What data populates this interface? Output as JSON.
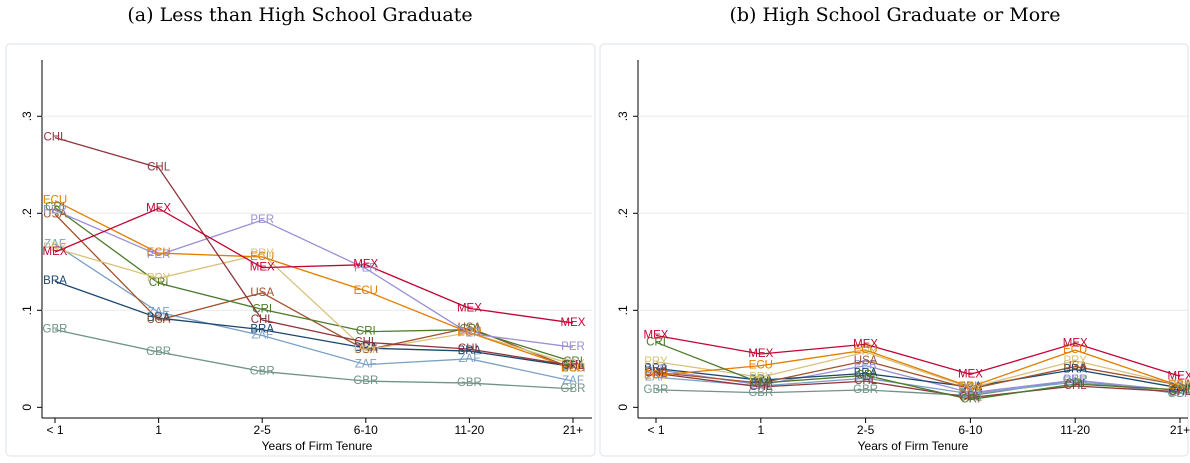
{
  "chart_data": [
    {
      "type": "line",
      "title": "(a) Less than High School Graduate",
      "x_label": "Years of Firm Tenure",
      "categories": [
        "< 1",
        "1",
        "2-5",
        "6-10",
        "11-20",
        "21+"
      ],
      "ylim": [
        -0.011,
        0.358
      ],
      "yticks": [
        0,
        {
          "value": 0.1,
          "label": ".1"
        },
        {
          "value": 0.2,
          "label": ".2"
        },
        {
          "value": 0.3,
          "label": ".3"
        }
      ],
      "grid": true,
      "series": [
        {
          "name": "GBR",
          "color": "#6f9485",
          "values": [
            0.08,
            0.057,
            0.037,
            0.027,
            0.025,
            0.019
          ]
        },
        {
          "name": "ZAF",
          "color": "#7ba0c7",
          "values": [
            0.168,
            0.098,
            0.074,
            0.044,
            0.05,
            0.027
          ]
        },
        {
          "name": "BRA",
          "color": "#1a476f",
          "values": [
            0.13,
            0.092,
            0.08,
            0.061,
            0.058,
            0.042
          ]
        },
        {
          "name": "USA",
          "color": "#a0522d",
          "values": [
            0.199,
            0.09,
            0.118,
            0.059,
            0.082,
            0.04
          ]
        },
        {
          "name": "CRI",
          "color": "#4b7a2a",
          "values": [
            0.206,
            0.128,
            0.101,
            0.078,
            0.08,
            0.047
          ]
        },
        {
          "name": "PRY",
          "color": "#d8c27a",
          "values": [
            0.164,
            0.133,
            0.158,
            0.059,
            0.077,
            0.044
          ]
        },
        {
          "name": "PER",
          "color": "#9a8fd6",
          "values": [
            0.203,
            0.157,
            0.193,
            0.143,
            0.076,
            0.062
          ]
        },
        {
          "name": "ECU",
          "color": "#e37e00",
          "values": [
            0.213,
            0.159,
            0.155,
            0.12,
            0.077,
            0.04
          ]
        },
        {
          "name": "CHL",
          "color": "#90353b",
          "values": [
            0.278,
            0.247,
            0.09,
            0.067,
            0.06,
            0.043
          ]
        },
        {
          "name": "MEX",
          "color": "#c10534",
          "values": [
            0.16,
            0.205,
            0.144,
            0.147,
            0.102,
            0.087
          ]
        }
      ]
    },
    {
      "type": "line",
      "title": "(b) High School Graduate or More",
      "x_label": "Years of Firm Tenure",
      "categories": [
        "< 1",
        "1",
        "2-5",
        "6-10",
        "11-20",
        "21+"
      ],
      "ylim": [
        -0.011,
        0.358
      ],
      "yticks": [
        0,
        {
          "value": 0.1,
          "label": ".1"
        },
        {
          "value": 0.2,
          "label": ".2"
        },
        {
          "value": 0.3,
          "label": ".3"
        }
      ],
      "grid": true,
      "series": [
        {
          "name": "GBR",
          "color": "#6f9485",
          "values": [
            0.018,
            0.015,
            0.018,
            0.012,
            0.028,
            0.014
          ]
        },
        {
          "name": "ZAF",
          "color": "#7ba0c7",
          "values": [
            0.031,
            0.022,
            0.03,
            0.014,
            0.026,
            0.015
          ]
        },
        {
          "name": "PER",
          "color": "#9a8fd6",
          "values": [
            0.039,
            0.023,
            0.043,
            0.015,
            0.028,
            0.017
          ]
        },
        {
          "name": "CHL",
          "color": "#90353b",
          "values": [
            0.035,
            0.021,
            0.027,
            0.01,
            0.022,
            0.016
          ]
        },
        {
          "name": "BRA",
          "color": "#1a476f",
          "values": [
            0.04,
            0.028,
            0.035,
            0.021,
            0.039,
            0.02
          ]
        },
        {
          "name": "USA",
          "color": "#a0522d",
          "values": [
            0.036,
            0.025,
            0.048,
            0.019,
            0.042,
            0.023
          ]
        },
        {
          "name": "PRY",
          "color": "#d8c27a",
          "values": [
            0.047,
            0.031,
            0.057,
            0.02,
            0.048,
            0.023
          ]
        },
        {
          "name": "ECU",
          "color": "#e37e00",
          "values": [
            0.033,
            0.043,
            0.059,
            0.021,
            0.059,
            0.022
          ]
        },
        {
          "name": "CRI",
          "color": "#4b7a2a",
          "values": [
            0.067,
            0.025,
            0.033,
            0.008,
            0.024,
            0.018
          ]
        },
        {
          "name": "MEX",
          "color": "#c10534",
          "values": [
            0.074,
            0.055,
            0.065,
            0.034,
            0.066,
            0.032
          ]
        }
      ]
    }
  ]
}
